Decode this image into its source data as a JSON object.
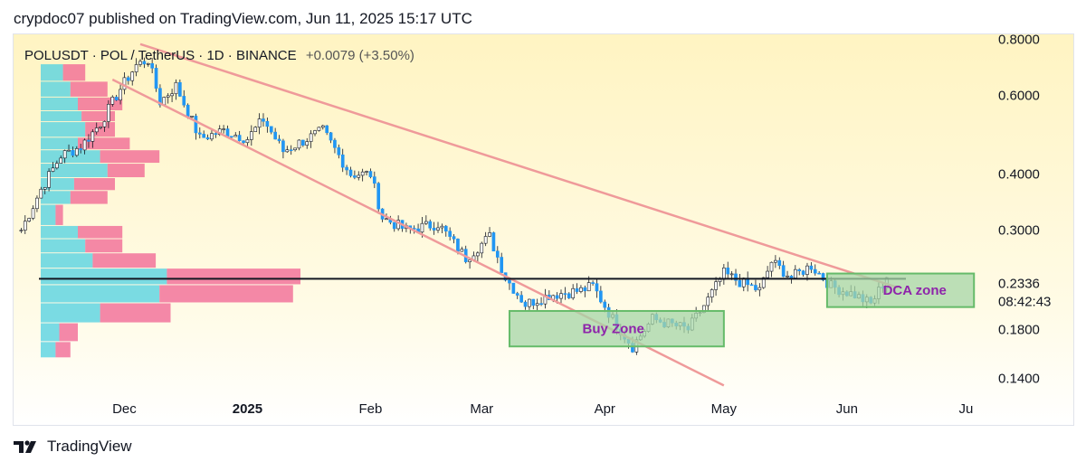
{
  "header": {
    "text": "crypdoc07 published on TradingView.com, Jun 11, 2025 15:17 UTC"
  },
  "symbol": {
    "name": "POLUSDT · POL / TetherUS · 1D · BINANCE",
    "change": "+0.0079 (+3.50%)"
  },
  "footer": {
    "brand": "TradingView",
    "logo_icon": "tradingview-logo-icon"
  },
  "colors": {
    "up": "#26a69a",
    "down": "#2196f3",
    "wick": "#131722",
    "trend_line": "#ef9a9a",
    "resistance": "#131722",
    "zone_fill": "#a5d6a7",
    "zone_stroke": "#66bb6a",
    "zone_text": "#8e24aa",
    "vp_up": "#4dd0e1",
    "vp_down": "#f06292"
  },
  "chart_data": {
    "type": "candlestick",
    "title": "POLUSDT · POL / TetherUS · 1D · BINANCE",
    "y_scale": "log",
    "ylim": [
      0.125,
      0.82
    ],
    "y_ticks": [
      0.8,
      0.6,
      0.4,
      0.3,
      0.18,
      0.14
    ],
    "y_tick_labels": [
      "0.8000",
      "0.6000",
      "0.4000",
      "0.3000",
      "0.1800",
      "0.1400"
    ],
    "x_ticks": [
      {
        "date": "2024-12-01",
        "label": "Dec"
      },
      {
        "date": "2025-01-01",
        "label": "2025"
      },
      {
        "date": "2025-02-01",
        "label": "Feb"
      },
      {
        "date": "2025-03-01",
        "label": "Mar"
      },
      {
        "date": "2025-04-01",
        "label": "Apr"
      },
      {
        "date": "2025-05-01",
        "label": "May"
      },
      {
        "date": "2025-06-01",
        "label": "Jun"
      },
      {
        "date": "2025-07-01",
        "label": "Ju"
      }
    ],
    "xlim": [
      "2024-11-04",
      "2025-07-05"
    ],
    "last_price": {
      "value": 0.2336,
      "label": "0.2336",
      "countdown": "08:42:43"
    },
    "resistance_level": 0.2336,
    "keypoints": [
      [
        "2024-11-05",
        0.3
      ],
      [
        "2024-11-10",
        0.37
      ],
      [
        "2024-11-15",
        0.44
      ],
      [
        "2024-11-20",
        0.46
      ],
      [
        "2024-11-25",
        0.52
      ],
      [
        "2024-11-30",
        0.62
      ],
      [
        "2024-12-04",
        0.7
      ],
      [
        "2024-12-07",
        0.72
      ],
      [
        "2024-12-10",
        0.58
      ],
      [
        "2024-12-14",
        0.63
      ],
      [
        "2024-12-20",
        0.48
      ],
      [
        "2024-12-26",
        0.5
      ],
      [
        "2025-01-01",
        0.48
      ],
      [
        "2025-01-05",
        0.53
      ],
      [
        "2025-01-10",
        0.45
      ],
      [
        "2025-01-20",
        0.5
      ],
      [
        "2025-01-27",
        0.4
      ],
      [
        "2025-02-01",
        0.4
      ],
      [
        "2025-02-04",
        0.32
      ],
      [
        "2025-02-10",
        0.3
      ],
      [
        "2025-02-18",
        0.31
      ],
      [
        "2025-02-25",
        0.26
      ],
      [
        "2025-03-03",
        0.29
      ],
      [
        "2025-03-07",
        0.235
      ],
      [
        "2025-03-12",
        0.205
      ],
      [
        "2025-03-18",
        0.215
      ],
      [
        "2025-03-26",
        0.22
      ],
      [
        "2025-03-29",
        0.225
      ],
      [
        "2025-04-03",
        0.19
      ],
      [
        "2025-04-08",
        0.165
      ],
      [
        "2025-04-13",
        0.19
      ],
      [
        "2025-04-22",
        0.18
      ],
      [
        "2025-04-27",
        0.21
      ],
      [
        "2025-05-01",
        0.24
      ],
      [
        "2025-05-05",
        0.23
      ],
      [
        "2025-05-10",
        0.22
      ],
      [
        "2025-05-13",
        0.255
      ],
      [
        "2025-05-18",
        0.235
      ],
      [
        "2025-05-23",
        0.25
      ],
      [
        "2025-05-28",
        0.225
      ],
      [
        "2025-06-03",
        0.215
      ],
      [
        "2025-06-07",
        0.205
      ],
      [
        "2025-06-11",
        0.235
      ]
    ],
    "trendlines": [
      {
        "name": "upper",
        "from": [
          "2024-12-05",
          0.78
        ],
        "to": [
          "2025-06-14",
          0.223
        ]
      },
      {
        "name": "lower",
        "from": [
          "2024-11-28",
          0.65
        ],
        "to": [
          "2025-05-01",
          0.135
        ]
      }
    ],
    "zones": [
      {
        "label": "Buy Zone",
        "x_from": "2025-03-08",
        "x_to": "2025-05-01",
        "y_from": 0.165,
        "y_to": 0.198
      },
      {
        "label": "DCA zone",
        "x_from": "2025-05-27",
        "x_to": "2025-07-03",
        "y_from": 0.202,
        "y_to": 0.24
      }
    ],
    "volume_profile": {
      "note_levels": "price of each row",
      "rows": [
        {
          "price": 0.7,
          "up": 0.3,
          "down": 0.3
        },
        {
          "price": 0.64,
          "up": 0.4,
          "down": 0.5
        },
        {
          "price": 0.59,
          "up": 0.5,
          "down": 0.6
        },
        {
          "price": 0.55,
          "up": 0.55,
          "down": 0.45
        },
        {
          "price": 0.52,
          "up": 0.6,
          "down": 0.4
        },
        {
          "price": 0.48,
          "up": 0.5,
          "down": 0.7
        },
        {
          "price": 0.45,
          "up": 0.8,
          "down": 0.8
        },
        {
          "price": 0.42,
          "up": 0.9,
          "down": 0.5
        },
        {
          "price": 0.39,
          "up": 0.45,
          "down": 0.55
        },
        {
          "price": 0.365,
          "up": 0.4,
          "down": 0.5
        },
        {
          "price": 0.34,
          "up": 0.2,
          "down": 0.1
        },
        {
          "price": 0.305,
          "up": 0.5,
          "down": 0.6
        },
        {
          "price": 0.285,
          "up": 0.6,
          "down": 0.5
        },
        {
          "price": 0.265,
          "up": 0.7,
          "down": 0.85
        },
        {
          "price": 0.245,
          "up": 1.7,
          "down": 1.8
        },
        {
          "price": 0.225,
          "up": 1.6,
          "down": 1.8
        },
        {
          "price": 0.205,
          "up": 0.8,
          "down": 0.95
        },
        {
          "price": 0.185,
          "up": 0.25,
          "down": 0.25
        },
        {
          "price": 0.168,
          "up": 0.2,
          "down": 0.2
        }
      ]
    }
  }
}
